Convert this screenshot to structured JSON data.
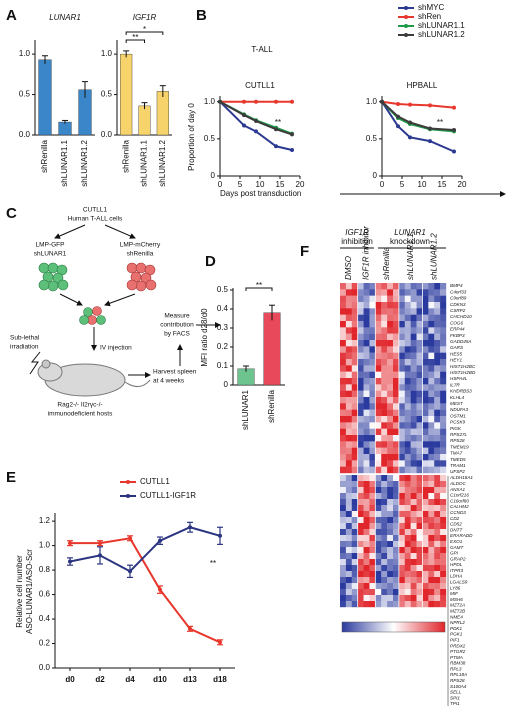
{
  "panels": [
    "A",
    "B",
    "C",
    "D",
    "E",
    "F"
  ],
  "chart_data": [
    {
      "type": "bar",
      "title": "LUNAR1",
      "categories": [
        "shRenilla",
        "shLUNAR1.1",
        "shLUNAR1.2"
      ],
      "values": [
        0.93,
        0.16,
        0.56
      ],
      "errors": [
        0.05,
        0.02,
        0.1
      ],
      "color": "#3a86c8",
      "ylim": [
        0,
        1.15
      ],
      "yticks": [
        {
          "value": 0,
          "label": "0.0"
        },
        0.5,
        {
          "value": 1,
          "label": "1.0"
        }
      ]
    },
    {
      "type": "bar",
      "title": "IGF1R",
      "categories": [
        "shRenilla",
        "shLUNAR1.1",
        "shLUNAR1.2"
      ],
      "values": [
        1.0,
        0.36,
        0.54
      ],
      "errors": [
        0.04,
        0.04,
        0.07
      ],
      "color": "#f7d36b",
      "ylim": [
        0,
        1.15
      ],
      "yticks": [
        {
          "value": 0,
          "label": "0.0"
        },
        0.5,
        {
          "value": 1,
          "label": "1.0"
        }
      ],
      "annotations": [
        "**",
        "*"
      ]
    },
    {
      "type": "line",
      "title": "T-ALL",
      "subtitle": "CUTLL1",
      "ylabel": "Proportion of day 0",
      "xlabel": "Days post transduction",
      "x": [
        0,
        6,
        9,
        14,
        18
      ],
      "series": [
        {
          "name": "shMYC",
          "color": "#2b3990",
          "values": [
            1,
            0.68,
            0.6,
            0.4,
            0.35
          ]
        },
        {
          "name": "shRen",
          "color": "#e8372c",
          "values": [
            1,
            1,
            1,
            1,
            1
          ]
        },
        {
          "name": "shLUNAR1.1",
          "color": "#1f9a48",
          "values": [
            1,
            0.83,
            0.75,
            0.65,
            0.57
          ]
        },
        {
          "name": "shLUNAR1.2",
          "color": "#3c3c3c",
          "values": [
            1,
            0.82,
            0.74,
            0.63,
            0.56
          ]
        }
      ],
      "xlim": [
        0,
        20
      ],
      "xticks": [
        0,
        5,
        10,
        15,
        20
      ],
      "ylim": [
        0,
        1.05
      ],
      "yticks": [
        0,
        0.5,
        {
          "value": 1,
          "label": "1.0"
        }
      ],
      "annotation": "**"
    },
    {
      "type": "line",
      "subtitle": "HPBALL",
      "x": [
        0,
        4,
        7,
        12,
        18
      ],
      "series": [
        {
          "color": "#2b3990",
          "values": [
            1,
            0.67,
            0.52,
            0.47,
            0.33
          ]
        },
        {
          "color": "#e8372c",
          "values": [
            1,
            0.97,
            0.96,
            0.95,
            0.92
          ]
        },
        {
          "color": "#1f9a48",
          "values": [
            1,
            0.78,
            0.7,
            0.63,
            0.6
          ]
        },
        {
          "color": "#3c3c3c",
          "values": [
            1,
            0.8,
            0.72,
            0.64,
            0.62
          ]
        }
      ],
      "xlim": [
        0,
        20
      ],
      "xticks": [
        0,
        5,
        10,
        15,
        20
      ],
      "ylim": [
        0,
        1.05
      ],
      "yticks": [
        0,
        0.5,
        {
          "value": 1,
          "label": "1.0"
        }
      ],
      "annotation": "**"
    },
    {
      "type": "bar",
      "ylabel": "MFI ratio d28/d0",
      "categories": [
        "shLUNAR1",
        "shRenilla"
      ],
      "values": [
        0.085,
        0.38
      ],
      "errors": [
        0.015,
        0.04
      ],
      "colors": [
        "#6dc48f",
        "#e8495b"
      ],
      "ylim": [
        0,
        0.5
      ],
      "yticks": [
        0,
        0.1,
        0.2,
        0.3,
        0.4,
        0.5
      ],
      "annotations": [
        "**"
      ]
    },
    {
      "type": "line",
      "ylabel": [
        "Relative cell number",
        "ASO-LUNAR1/ASO-Scr"
      ],
      "categories": [
        "d0",
        "d2",
        "d4",
        "d10",
        "d13",
        "d18"
      ],
      "series": [
        {
          "name": "CUTLL1",
          "color": "#e8372c",
          "values": [
            1.02,
            1.02,
            1.06,
            0.64,
            0.32,
            0.21
          ],
          "errors": [
            0.02,
            0.02,
            0.02,
            0.03,
            0.02,
            0.02
          ]
        },
        {
          "name": "CUTLL1-IGF1R",
          "color": "#2b3480",
          "values": [
            0.87,
            0.92,
            0.79,
            1.04,
            1.15,
            1.08
          ],
          "errors": [
            0.03,
            0.07,
            0.05,
            0.03,
            0.04,
            0.07
          ]
        }
      ],
      "ylim": [
        0,
        1.25
      ],
      "yticks": [
        {
          "value": 0,
          "label": "0.0"
        },
        0.2,
        0.4,
        0.6,
        0.8,
        {
          "value": 1,
          "label": "1.0"
        },
        1.2
      ],
      "annotation": "**"
    }
  ],
  "diagram": {
    "title": "CUTLL1",
    "subtitle": "Human T-ALL cells",
    "left": "LMP-GFP",
    "left2": "shLUNAR1",
    "right": "LMP-mCherry",
    "right2": "shRenilla",
    "irradiation": [
      "Sub-lethal",
      "irradiation"
    ],
    "injection": "IV injection",
    "harvest": [
      "Harvest spleen",
      "at 4 weeks"
    ],
    "measure": [
      "Measure",
      "contribution",
      "by FACS"
    ],
    "hosts": [
      "Rag2-/- Il2rγc-/-",
      "immunodeficient hosts"
    ]
  },
  "heatmap": {
    "group1": [
      "IGF1R",
      "inhibition"
    ],
    "group2": [
      "LUNAR1",
      "knockdown"
    ],
    "columns": [
      "DMSO",
      "IGF1R inhibitor",
      "shRenilla",
      "shLUNAR1.1",
      "shLUNAR1.2"
    ],
    "genes_up": [
      "BMP4",
      "C4orf33",
      "C9orf89",
      "CDKN3",
      "CSRP2",
      "CHCHD10",
      "COG6",
      "ERP44",
      "FKBP3",
      "GADD45A",
      "GARS",
      "HES5",
      "HEY1",
      "HIST1H2BC",
      "HIST1H2BD",
      "HSPA4L",
      "IL7R",
      "KHDRBS3",
      "KLHL4",
      "MEST",
      "NDUFA3",
      "OSTM1",
      "PCSK9",
      "PIGK",
      "RPS27L",
      "RPS28",
      "TMEM19",
      "TMA7",
      "TMED5",
      "TRAM1",
      "UFSP2"
    ],
    "genes_down": [
      "ALDH18A1",
      "ALDOC",
      "ANXA1",
      "C1orf216",
      "C16orf80",
      "CALHM2",
      "CCND3",
      "CD2",
      "CD52",
      "DNTT",
      "ERARADD",
      "EXO1",
      "GAMT",
      "GPI",
      "GRAP2",
      "HPDL",
      "ITPR3",
      "LDHA",
      "LGALS9",
      "LY86",
      "MIF",
      "MSH6",
      "MZT2A",
      "MZT2B",
      "NME4",
      "NPRL2",
      "PDK1",
      "PGK1",
      "PIF1",
      "PRDX2",
      "PTGR2",
      "PTMA",
      "RBM38",
      "RPL3",
      "RPL18A",
      "RPS28",
      "S100A4",
      "SELL",
      "SPI1",
      "TPI1"
    ]
  }
}
